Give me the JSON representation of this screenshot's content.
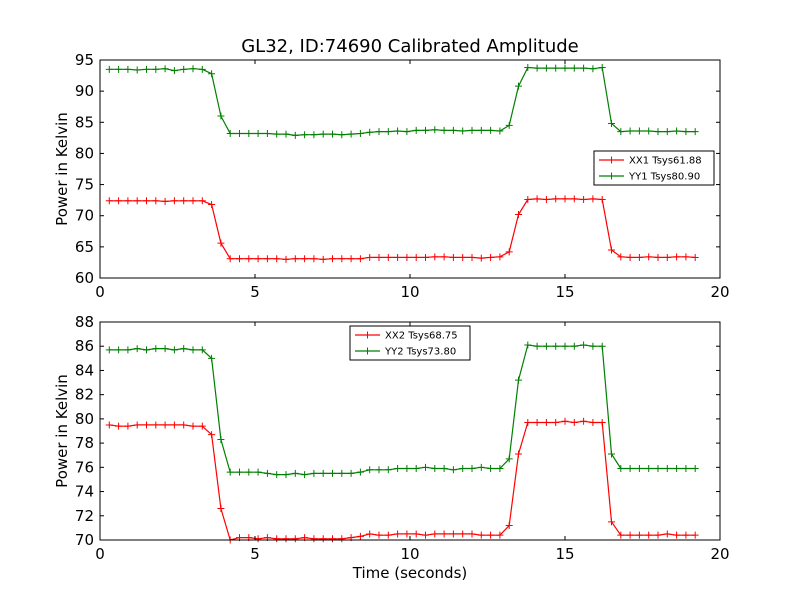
{
  "title": "GL32, ID:74690 Calibrated Amplitude",
  "chart_data": [
    {
      "type": "line",
      "ylabel": "Power in Kelvin",
      "xlabel": "",
      "xlim": [
        0,
        20
      ],
      "ylim": [
        60,
        95
      ],
      "xticks": [
        "0",
        "5",
        "10",
        "15",
        "20"
      ],
      "yticks": [
        "60",
        "65",
        "70",
        "75",
        "80",
        "85",
        "90",
        "95"
      ],
      "grid": false,
      "legend_position": "right",
      "x": [
        0.3,
        0.6,
        0.9,
        1.2,
        1.5,
        1.8,
        2.1,
        2.4,
        2.7,
        3.0,
        3.3,
        3.6,
        3.9,
        4.2,
        4.5,
        4.8,
        5.1,
        5.4,
        5.7,
        6.0,
        6.3,
        6.6,
        6.9,
        7.2,
        7.5,
        7.8,
        8.1,
        8.4,
        8.7,
        9.0,
        9.3,
        9.6,
        9.9,
        10.2,
        10.5,
        10.8,
        11.1,
        11.4,
        11.7,
        12.0,
        12.3,
        12.6,
        12.9,
        13.2,
        13.5,
        13.8,
        14.1,
        14.4,
        14.7,
        15.0,
        15.3,
        15.6,
        15.9,
        16.2,
        16.5,
        16.8,
        17.1,
        17.4,
        17.7,
        18.0,
        18.3,
        18.6,
        18.9,
        19.2
      ],
      "series": [
        {
          "name": "XX1 Tsys61.88",
          "color": "#ff0000",
          "values": [
            72.4,
            72.4,
            72.4,
            72.4,
            72.4,
            72.4,
            72.3,
            72.4,
            72.4,
            72.4,
            72.4,
            71.8,
            65.6,
            63.1,
            63.1,
            63.1,
            63.1,
            63.1,
            63.1,
            63.0,
            63.1,
            63.1,
            63.1,
            63.0,
            63.1,
            63.1,
            63.1,
            63.1,
            63.3,
            63.3,
            63.3,
            63.3,
            63.3,
            63.3,
            63.3,
            63.4,
            63.4,
            63.3,
            63.3,
            63.3,
            63.2,
            63.3,
            63.4,
            64.2,
            70.2,
            72.6,
            72.7,
            72.6,
            72.7,
            72.7,
            72.7,
            72.6,
            72.7,
            72.6,
            64.5,
            63.4,
            63.3,
            63.3,
            63.4,
            63.3,
            63.3,
            63.4,
            63.4,
            63.3
          ]
        },
        {
          "name": "YY1 Tsys80.90",
          "color": "#008000",
          "values": [
            93.5,
            93.5,
            93.5,
            93.4,
            93.5,
            93.5,
            93.6,
            93.3,
            93.5,
            93.6,
            93.5,
            92.8,
            86.0,
            83.2,
            83.2,
            83.2,
            83.2,
            83.2,
            83.1,
            83.1,
            82.9,
            83.0,
            83.0,
            83.1,
            83.1,
            83.0,
            83.1,
            83.2,
            83.4,
            83.5,
            83.5,
            83.6,
            83.5,
            83.7,
            83.7,
            83.8,
            83.7,
            83.7,
            83.6,
            83.7,
            83.7,
            83.7,
            83.6,
            84.5,
            90.8,
            93.8,
            93.7,
            93.7,
            93.7,
            93.7,
            93.7,
            93.7,
            93.6,
            93.8,
            84.8,
            83.5,
            83.6,
            83.6,
            83.6,
            83.5,
            83.5,
            83.6,
            83.5,
            83.5
          ]
        }
      ]
    },
    {
      "type": "line",
      "ylabel": "Power in Kelvin",
      "xlabel": "Time (seconds)",
      "xlim": [
        0,
        20
      ],
      "ylim": [
        70,
        88
      ],
      "xticks": [
        "0",
        "5",
        "10",
        "15",
        "20"
      ],
      "yticks": [
        "70",
        "72",
        "74",
        "76",
        "78",
        "80",
        "82",
        "84",
        "86",
        "88"
      ],
      "grid": false,
      "legend_position": "top-center",
      "x": [
        0.3,
        0.6,
        0.9,
        1.2,
        1.5,
        1.8,
        2.1,
        2.4,
        2.7,
        3.0,
        3.3,
        3.6,
        3.9,
        4.2,
        4.5,
        4.8,
        5.1,
        5.4,
        5.7,
        6.0,
        6.3,
        6.6,
        6.9,
        7.2,
        7.5,
        7.8,
        8.1,
        8.4,
        8.7,
        9.0,
        9.3,
        9.6,
        9.9,
        10.2,
        10.5,
        10.8,
        11.1,
        11.4,
        11.7,
        12.0,
        12.3,
        12.6,
        12.9,
        13.2,
        13.5,
        13.8,
        14.1,
        14.4,
        14.7,
        15.0,
        15.3,
        15.6,
        15.9,
        16.2,
        16.5,
        16.8,
        17.1,
        17.4,
        17.7,
        18.0,
        18.3,
        18.6,
        18.9,
        19.2
      ],
      "series": [
        {
          "name": "XX2 Tsys68.75",
          "color": "#ff0000",
          "values": [
            79.5,
            79.4,
            79.4,
            79.5,
            79.5,
            79.5,
            79.5,
            79.5,
            79.5,
            79.4,
            79.4,
            78.7,
            72.6,
            70.0,
            70.2,
            70.2,
            70.1,
            70.2,
            70.1,
            70.1,
            70.1,
            70.2,
            70.1,
            70.1,
            70.1,
            70.1,
            70.2,
            70.3,
            70.5,
            70.4,
            70.4,
            70.5,
            70.5,
            70.5,
            70.4,
            70.5,
            70.5,
            70.5,
            70.5,
            70.5,
            70.4,
            70.4,
            70.4,
            71.2,
            77.1,
            79.7,
            79.7,
            79.7,
            79.7,
            79.8,
            79.7,
            79.8,
            79.7,
            79.7,
            71.5,
            70.4,
            70.4,
            70.4,
            70.4,
            70.4,
            70.5,
            70.4,
            70.4,
            70.4
          ]
        },
        {
          "name": "YY2 Tsys73.80",
          "color": "#008000",
          "values": [
            85.7,
            85.7,
            85.7,
            85.8,
            85.7,
            85.8,
            85.8,
            85.7,
            85.8,
            85.7,
            85.7,
            85.0,
            78.3,
            75.6,
            75.6,
            75.6,
            75.6,
            75.5,
            75.4,
            75.4,
            75.5,
            75.4,
            75.5,
            75.5,
            75.5,
            75.5,
            75.5,
            75.6,
            75.8,
            75.8,
            75.8,
            75.9,
            75.9,
            75.9,
            76.0,
            75.9,
            75.9,
            75.8,
            75.9,
            75.9,
            76.0,
            75.9,
            75.9,
            76.7,
            83.2,
            86.1,
            86.0,
            86.0,
            86.0,
            86.0,
            86.0,
            86.1,
            86.0,
            86.0,
            77.1,
            75.9,
            75.9,
            75.9,
            75.9,
            75.9,
            75.9,
            75.9,
            75.9,
            75.9
          ]
        }
      ]
    }
  ]
}
